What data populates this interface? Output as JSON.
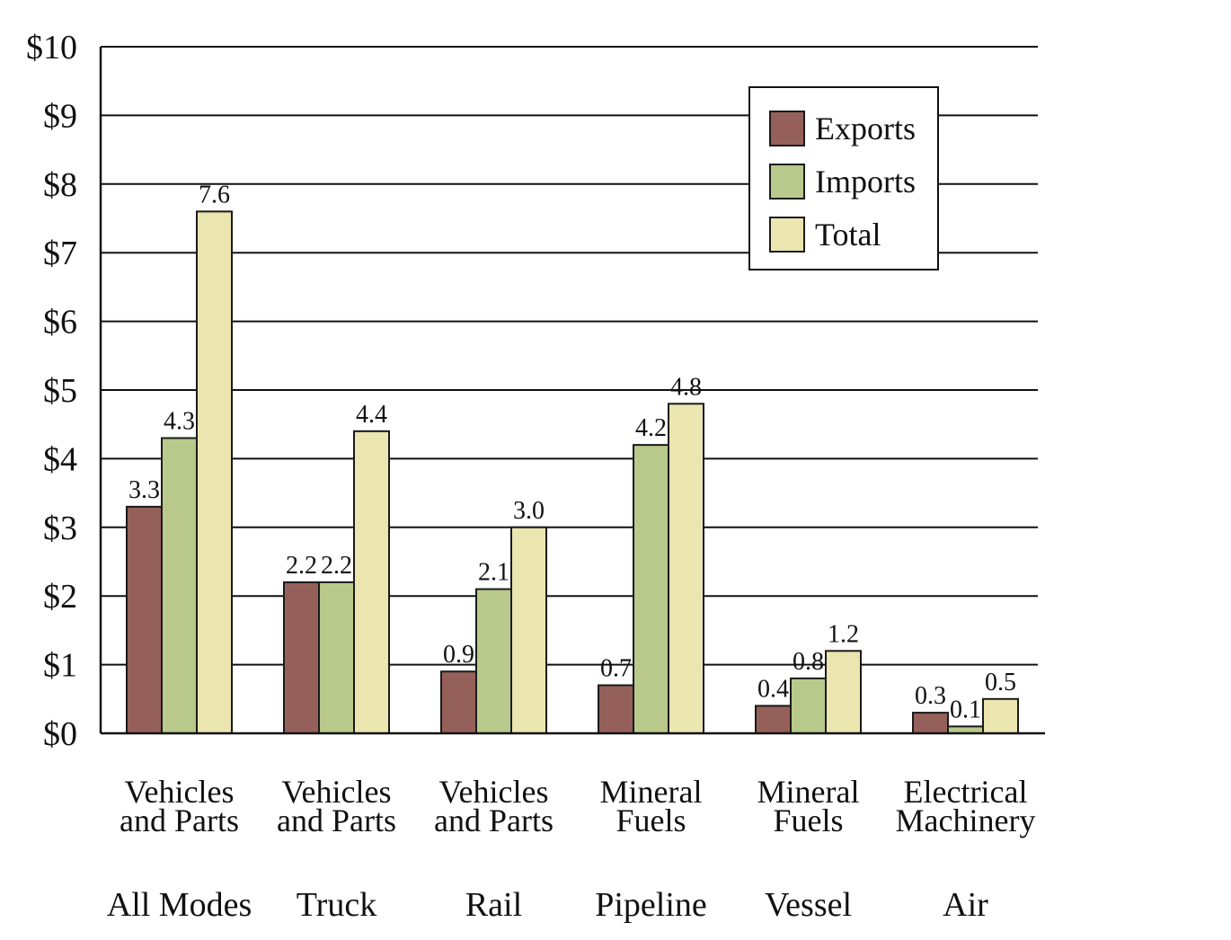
{
  "chart_data": {
    "type": "bar",
    "title": "",
    "xlabel": "",
    "ylabel": "",
    "ylim": [
      0,
      10
    ],
    "y_ticks": [
      "$0",
      "$1",
      "$2",
      "$3",
      "$4",
      "$5",
      "$6",
      "$7",
      "$8",
      "$9",
      "$10"
    ],
    "categories": [
      {
        "line1": "Vehicles",
        "line2": "and Parts",
        "mode": "All Modes"
      },
      {
        "line1": "Vehicles",
        "line2": "and Parts",
        "mode": "Truck"
      },
      {
        "line1": "Vehicles",
        "line2": "and Parts",
        "mode": "Rail"
      },
      {
        "line1": "Mineral",
        "line2": "Fuels",
        "mode": "Pipeline"
      },
      {
        "line1": "Mineral",
        "line2": "Fuels",
        "mode": "Vessel"
      },
      {
        "line1": "Electrical",
        "line2": "Machinery",
        "mode": "Air"
      }
    ],
    "series": [
      {
        "name": "Exports",
        "color": "#956059",
        "values": [
          3.3,
          2.2,
          0.9,
          0.7,
          0.4,
          0.3
        ],
        "labels": [
          "3.3",
          "2.2",
          "0.9",
          "0.7",
          "0.4",
          "0.3"
        ]
      },
      {
        "name": "Imports",
        "color": "#b8c98b",
        "values": [
          4.3,
          2.2,
          2.1,
          4.2,
          0.8,
          0.1
        ],
        "labels": [
          "4.3",
          "2.2",
          "2.1",
          "4.2",
          "0.8",
          "0.1"
        ]
      },
      {
        "name": "Total",
        "color": "#ebe5b0",
        "values": [
          7.6,
          4.4,
          3.0,
          4.8,
          1.2,
          0.5
        ],
        "labels": [
          "7.6",
          "4.4",
          "3.0",
          "4.8",
          "1.2",
          "0.5"
        ]
      }
    ],
    "grid": true,
    "legend": "top-right"
  }
}
